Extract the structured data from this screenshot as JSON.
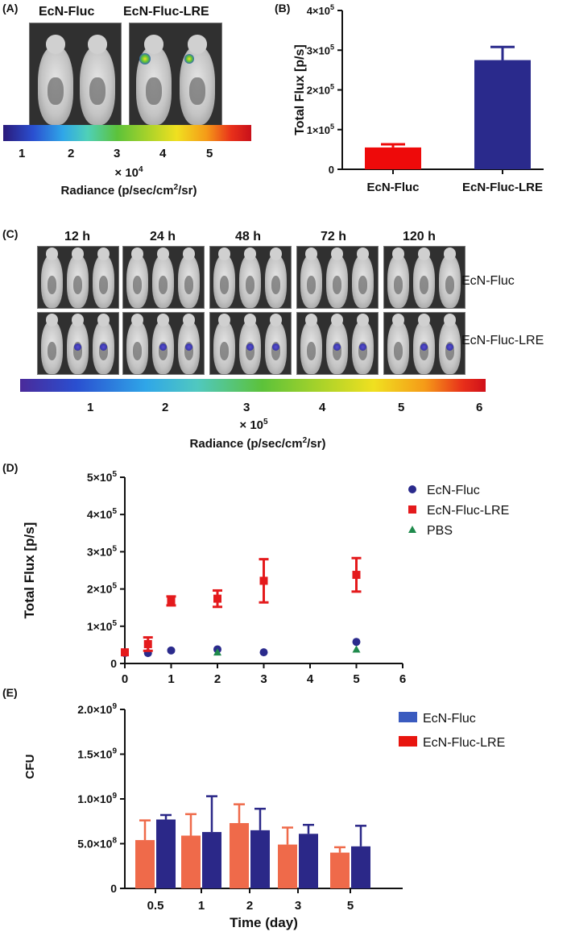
{
  "panelA": {
    "label": "(A)",
    "groups": [
      "EcN-Fluc",
      "EcN-Fluc-LRE"
    ],
    "colorbar_ticks": [
      "1",
      "2",
      "3",
      "4",
      "5"
    ],
    "scale": "× 10",
    "scale_exp": "4",
    "unit": "Radiance (p/sec/cm",
    "unit_sup": "2",
    "unit_tail": "/sr)"
  },
  "panelC": {
    "label": "(C)",
    "timepoints": [
      "12 h",
      "24 h",
      "48 h",
      "72 h",
      "120 h"
    ],
    "rows": [
      "EcN-Fluc",
      "EcN-Fluc-LRE"
    ],
    "colorbar_ticks": [
      "1",
      "2",
      "3",
      "4",
      "5",
      "6"
    ],
    "scale": "× 10",
    "scale_exp": "5",
    "unit": "Radiance (p/sec/cm",
    "unit_sup": "2",
    "unit_tail": "/sr)"
  },
  "chart_data": [
    {
      "panel": "(B)",
      "type": "bar",
      "ylabel": "Total Flux [p/s]",
      "xlabel": "",
      "categories": [
        "EcN-Fluc",
        "EcN-Fluc-LRE"
      ],
      "values": [
        55000,
        275000
      ],
      "errors": [
        8000,
        33000
      ],
      "colors": [
        "#ee0a0a",
        "#2a2a8c"
      ],
      "ylim": [
        0,
        400000
      ],
      "yticks": [
        {
          "v": 0,
          "m": "0",
          "e": ""
        },
        {
          "v": 100000,
          "m": "1×10",
          "e": "5"
        },
        {
          "v": 200000,
          "m": "2×10",
          "e": "5"
        },
        {
          "v": 300000,
          "m": "3×10",
          "e": "5"
        },
        {
          "v": 400000,
          "m": "4×10",
          "e": "5"
        }
      ]
    },
    {
      "panel": "(D)",
      "type": "scatter",
      "xlabel": "Time (day)",
      "ylabel": "Total Flux [p/s]",
      "xlim": [
        0,
        6
      ],
      "ylim": [
        0,
        500000
      ],
      "xticks": [
        "0",
        "1",
        "2",
        "3",
        "4",
        "5",
        "6"
      ],
      "yticks": [
        {
          "v": 0,
          "m": "0",
          "e": ""
        },
        {
          "v": 100000,
          "m": "1×10",
          "e": "5"
        },
        {
          "v": 200000,
          "m": "2×10",
          "e": "5"
        },
        {
          "v": 300000,
          "m": "3×10",
          "e": "5"
        },
        {
          "v": 400000,
          "m": "4×10",
          "e": "5"
        },
        {
          "v": 500000,
          "m": "5×10",
          "e": "5"
        }
      ],
      "series": [
        {
          "name": "EcN-Fluc",
          "marker": "circle",
          "color": "#2a2a8c",
          "x": [
            0,
            0.5,
            1,
            2,
            3,
            5
          ],
          "y": [
            28000,
            28000,
            35000,
            38000,
            30000,
            58000
          ],
          "err": [
            0,
            0,
            0,
            0,
            0,
            0
          ]
        },
        {
          "name": "EcN-Fluc-LRE",
          "marker": "square",
          "color": "#e41a1c",
          "x": [
            0,
            0.5,
            1,
            2,
            3,
            5
          ],
          "y": [
            30000,
            52000,
            168000,
            174000,
            222000,
            238000
          ],
          "err": [
            0,
            18000,
            12000,
            22000,
            58000,
            45000
          ]
        },
        {
          "name": "PBS",
          "marker": "triangle",
          "color": "#1f8a4c",
          "x": [
            2,
            5
          ],
          "y": [
            30000,
            38000
          ],
          "err": [
            0,
            0
          ]
        }
      ]
    },
    {
      "panel": "(E)",
      "type": "bar",
      "xlabel": "Time (day)",
      "ylabel": "CFU",
      "categories": [
        "0.5",
        "1",
        "2",
        "3",
        "5"
      ],
      "ylim": [
        0,
        2000000000
      ],
      "yticks": [
        {
          "v": 0,
          "m": "0",
          "e": ""
        },
        {
          "v": 500000000,
          "m": "5.0×10",
          "e": "8"
        },
        {
          "v": 1000000000,
          "m": "1.0×10",
          "e": "9"
        },
        {
          "v": 1500000000,
          "m": "1.5×10",
          "e": "9"
        },
        {
          "v": 2000000000,
          "m": "2.0×10",
          "e": "9"
        }
      ],
      "legend_entries": [
        {
          "name": "EcN-Fluc",
          "color": "#3a5bbf"
        },
        {
          "name": "EcN-Fluc-LRE",
          "color": "#e8150f"
        }
      ],
      "series": [
        {
          "name": "EcN-Fluc-LRE",
          "color": "#ef6a4a",
          "values": [
            540000000,
            590000000,
            730000000,
            490000000,
            400000000
          ],
          "errors": [
            220000000,
            240000000,
            210000000,
            190000000,
            60000000
          ]
        },
        {
          "name": "EcN-Fluc",
          "color": "#2b2888",
          "values": [
            770000000,
            630000000,
            650000000,
            610000000,
            470000000
          ],
          "errors": [
            50000000,
            400000000,
            240000000,
            100000000,
            230000000
          ]
        }
      ]
    }
  ]
}
